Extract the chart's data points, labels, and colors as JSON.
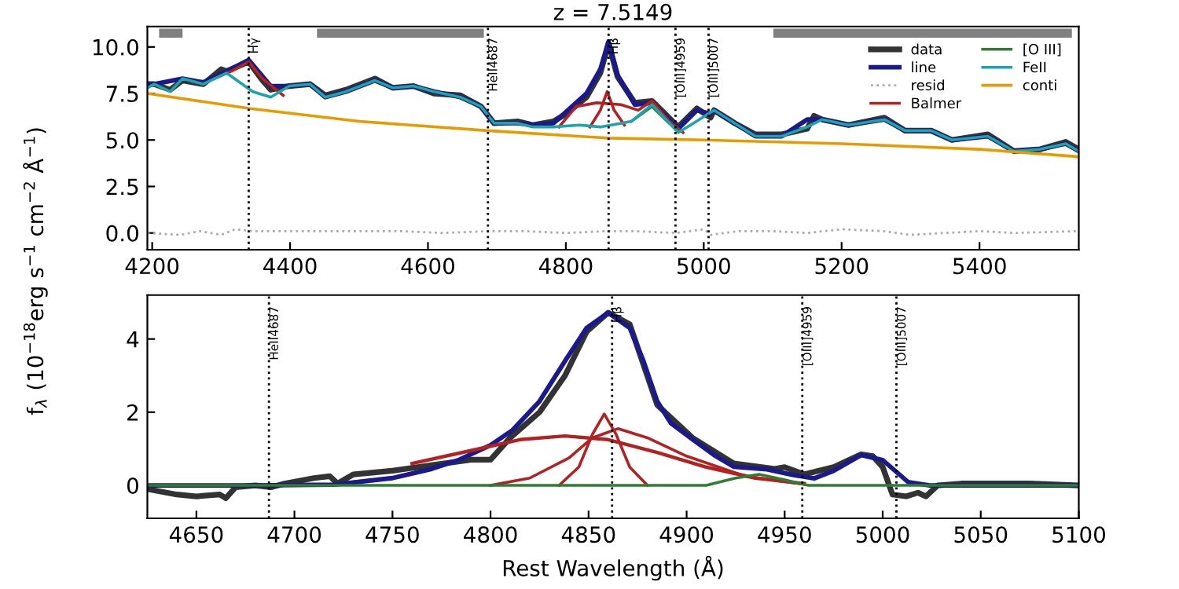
{
  "chart_data": [
    {
      "type": "line",
      "title": "z = 7.5149",
      "ylabel": "f$_{λ}$ (10$^{−18}$erg s$^{−1}$ cm$^{−2}$ Å$^{−1}$)",
      "xlim": [
        4193,
        5544
      ],
      "ylim": [
        -0.9,
        11.1
      ],
      "xticks": [
        4200,
        4400,
        4600,
        4800,
        5000,
        5200,
        5400
      ],
      "yticks": [
        {
          "value": 0,
          "label": "0.0"
        },
        {
          "value": 2.5,
          "label": "2.5"
        },
        {
          "value": 5,
          "label": "5.0"
        },
        {
          "value": 7.5,
          "label": "7.5"
        },
        {
          "value": 10,
          "label": "10.0"
        }
      ],
      "grid": false,
      "legend": "top right",
      "series": [
        {
          "name": "data",
          "color": "#333333",
          "x": [
            4193,
            4203,
            4226,
            4244,
            4274,
            4300,
            4308,
            4340,
            4360,
            4372,
            4399,
            4429,
            4451,
            4481,
            4523,
            4549,
            4579,
            4609,
            4647,
            4677,
            4696,
            4730,
            4752,
            4782,
            4800,
            4830,
            4850,
            4862,
            4875,
            4900,
            4925,
            4963,
            4990,
            5010,
            5015,
            5045,
            5075,
            5113,
            5150,
            5160,
            5172,
            5210,
            5262,
            5292,
            5330,
            5360,
            5412,
            5450,
            5488,
            5525,
            5544
          ],
          "values": [
            8.0,
            8.0,
            7.7,
            8.2,
            8.0,
            8.8,
            8.7,
            9.2,
            8.2,
            7.7,
            7.9,
            8.0,
            7.4,
            7.7,
            8.3,
            7.8,
            7.9,
            7.5,
            7.4,
            6.8,
            5.9,
            6.0,
            5.8,
            6.0,
            6.4,
            7.3,
            8.6,
            10.2,
            8.4,
            7.0,
            7.1,
            5.7,
            6.7,
            6.2,
            6.6,
            5.9,
            5.3,
            5.3,
            5.6,
            6.3,
            6.1,
            5.8,
            6.2,
            5.5,
            5.5,
            5.0,
            5.3,
            4.4,
            4.5,
            4.9,
            4.5
          ]
        },
        {
          "name": "line",
          "color": "#1a1a8c",
          "x": [
            4193,
            4203,
            4244,
            4274,
            4308,
            4340,
            4372,
            4399,
            4429,
            4451,
            4481,
            4523,
            4549,
            4579,
            4609,
            4647,
            4677,
            4696,
            4730,
            4752,
            4782,
            4800,
            4830,
            4850,
            4862,
            4875,
            4900,
            4925,
            4963,
            4990,
            5010,
            5015,
            5045,
            5075,
            5113,
            5150,
            5172,
            5210,
            5262,
            5292,
            5330,
            5360,
            5412,
            5450,
            5488,
            5525,
            5544
          ],
          "values": [
            8.0,
            8.0,
            8.3,
            8.1,
            8.7,
            9.3,
            7.9,
            7.9,
            8.0,
            7.3,
            7.6,
            8.2,
            7.8,
            7.9,
            7.6,
            7.3,
            6.8,
            5.9,
            5.9,
            5.8,
            5.9,
            6.5,
            7.5,
            8.8,
            10.3,
            8.5,
            6.9,
            7.0,
            5.6,
            6.6,
            6.4,
            6.6,
            5.9,
            5.2,
            5.2,
            6.1,
            6.1,
            5.8,
            6.1,
            5.5,
            5.5,
            5.0,
            5.2,
            4.4,
            4.5,
            4.8,
            4.4
          ]
        },
        {
          "name": "resid",
          "color": "#aaaaaa",
          "line_style": "dotted",
          "x": [
            4193,
            4240,
            4270,
            4300,
            4320,
            4345,
            4400,
            4450,
            4500,
            4560,
            4620,
            4690,
            4740,
            4800,
            4860,
            4900,
            4960,
            5000,
            5010,
            5050,
            5100,
            5150,
            5200,
            5260,
            5300,
            5400,
            5450,
            5544
          ],
          "values": [
            0.0,
            -0.1,
            0.1,
            -0.1,
            0.2,
            0.1,
            0.1,
            0.1,
            0.1,
            0.1,
            0.0,
            0.1,
            0.1,
            0.0,
            0.1,
            0.1,
            0.0,
            0.2,
            -0.1,
            0.1,
            0.1,
            0.0,
            0.2,
            0.1,
            -0.1,
            0.1,
            0.0,
            0.1
          ]
        },
        {
          "name": "Balmer",
          "color": "#b22222",
          "x": [
            4290,
            4315,
            4340,
            4360,
            4390
          ],
          "values": [
            8.3,
            8.7,
            9.2,
            8.3,
            7.4
          ]
        },
        {
          "color": "#b22222",
          "x": [
            4790,
            4815,
            4845,
            4880,
            4905,
            4925,
            4950,
            4970
          ],
          "values": [
            5.7,
            6.8,
            7.0,
            6.9,
            6.6,
            7.1,
            6.0,
            5.4
          ]
        },
        {
          "color": "#b22222",
          "x": [
            4835,
            4850,
            4860,
            4870,
            4885
          ],
          "values": [
            5.7,
            6.6,
            7.6,
            6.6,
            5.8
          ]
        },
        {
          "name": "[O III]",
          "color": "#2e7d32",
          "x": [
            4895,
            4925,
            4950,
            4963
          ],
          "values": [
            6.0,
            6.8,
            5.9,
            5.5
          ]
        },
        {
          "name": "FeII",
          "color": "#1fa3a8",
          "x": [
            4193,
            4203,
            4226,
            4244,
            4274,
            4308,
            4346,
            4372,
            4399,
            4429,
            4451,
            4481,
            4523,
            4549,
            4579,
            4609,
            4647,
            4677,
            4696,
            4730,
            4752,
            4782,
            4820,
            4850,
            4880,
            4895,
            4925,
            4963,
            4985,
            5015,
            5045,
            5075,
            5113,
            5150,
            5172,
            5210,
            5262,
            5292,
            5330,
            5360,
            5412,
            5450,
            5488,
            5525,
            5544
          ],
          "values": [
            7.8,
            8.0,
            7.6,
            8.3,
            8.0,
            8.6,
            7.6,
            7.3,
            7.9,
            8.0,
            7.3,
            7.6,
            8.2,
            7.8,
            7.9,
            7.6,
            7.3,
            6.8,
            5.9,
            5.9,
            5.7,
            5.7,
            5.8,
            5.7,
            5.9,
            6.0,
            6.9,
            5.4,
            5.9,
            6.6,
            5.9,
            5.2,
            5.2,
            5.7,
            6.1,
            5.8,
            6.1,
            5.5,
            5.5,
            5.0,
            5.2,
            4.4,
            4.5,
            4.8,
            4.4
          ]
        },
        {
          "name": "conti",
          "color": "#e69b00",
          "x": [
            4193,
            4340,
            4500,
            4687,
            4862,
            5000,
            5200,
            5400,
            5544
          ],
          "values": [
            7.5,
            6.7,
            6.0,
            5.5,
            5.1,
            5.0,
            4.8,
            4.5,
            4.1
          ]
        }
      ],
      "ref_lines": [
        {
          "axis": "x",
          "value": 4340,
          "label": "Hγ"
        },
        {
          "axis": "x",
          "value": 4687,
          "label": "HeII4687"
        },
        {
          "axis": "x",
          "value": 4862,
          "label": "Hβ"
        },
        {
          "axis": "x",
          "value": 4959,
          "label": "[OIII]4959"
        },
        {
          "axis": "x",
          "value": 5007,
          "label": "[OIII]5007"
        }
      ],
      "bands": [
        {
          "axis": "x",
          "from": 4210,
          "to": 4244,
          "color": "#808080"
        },
        {
          "axis": "x",
          "from": 4439,
          "to": 4681,
          "color": "#808080"
        },
        {
          "axis": "x",
          "from": 5101,
          "to": 5534,
          "color": "#808080"
        }
      ]
    },
    {
      "type": "line",
      "xlabel": "Rest Wavelength (Å)",
      "xlim": [
        4625,
        5100
      ],
      "ylim": [
        -0.9,
        5.2
      ],
      "xticks": [
        4650,
        4700,
        4750,
        4800,
        4850,
        4900,
        4950,
        5000,
        5050,
        5100
      ],
      "yticks": [
        0,
        2,
        4
      ],
      "grid": false,
      "series": [
        {
          "color": "#333333",
          "x": [
            4625,
            4640,
            4650,
            4662,
            4665,
            4670,
            4680,
            4688,
            4695,
            4710,
            4718,
            4722,
            4730,
            4750,
            4770,
            4790,
            4800,
            4810,
            4825,
            4838,
            4849,
            4860,
            4871,
            4878,
            4885,
            4903,
            4924,
            4945,
            4950,
            4960,
            4975,
            4989,
            4995,
            5000,
            5005,
            5012,
            5018,
            5022,
            5028,
            5040,
            5075,
            5100
          ],
          "values": [
            -0.1,
            -0.25,
            -0.3,
            -0.25,
            -0.35,
            -0.05,
            0.0,
            -0.05,
            0.05,
            0.2,
            0.25,
            0.05,
            0.3,
            0.4,
            0.55,
            0.7,
            0.7,
            1.3,
            2.0,
            3.0,
            4.2,
            4.72,
            4.4,
            3.3,
            2.2,
            1.3,
            0.6,
            0.45,
            0.5,
            0.3,
            0.5,
            0.85,
            0.8,
            0.5,
            -0.25,
            -0.3,
            -0.2,
            -0.3,
            0.0,
            0.05,
            0.05,
            0.0
          ]
        },
        {
          "color": "#1a1a8c",
          "x": [
            4625,
            4680,
            4720,
            4750,
            4770,
            4784,
            4800,
            4811,
            4825,
            4838,
            4849,
            4860,
            4871,
            4878,
            4885,
            4892,
            4903,
            4914,
            4924,
            4941,
            4954,
            4965,
            4975,
            4989,
            5000,
            5013,
            5024,
            5100
          ],
          "values": [
            0.0,
            0.0,
            0.02,
            0.2,
            0.45,
            0.7,
            1.1,
            1.5,
            2.3,
            3.4,
            4.3,
            4.72,
            4.3,
            3.4,
            2.3,
            1.7,
            1.26,
            0.83,
            0.51,
            0.44,
            0.29,
            0.19,
            0.4,
            0.83,
            0.69,
            0.09,
            0.0,
            0.0
          ]
        },
        {
          "color": "#b22222",
          "x": [
            4760,
            4790,
            4815,
            4838,
            4860,
            4885,
            4910,
            4935,
            4960
          ],
          "values": [
            0.6,
            0.95,
            1.25,
            1.35,
            1.25,
            0.9,
            0.5,
            0.2,
            0.05
          ]
        },
        {
          "color": "#b22222",
          "x": [
            4800,
            4820,
            4840,
            4852,
            4865,
            4880,
            4900,
            4930,
            4960
          ],
          "values": [
            0.0,
            0.2,
            0.75,
            1.3,
            1.55,
            1.3,
            0.8,
            0.25,
            0.03
          ]
        },
        {
          "color": "#b22222",
          "x": [
            4835,
            4845,
            4852,
            4858,
            4864,
            4871,
            4880
          ],
          "values": [
            0.0,
            0.5,
            1.4,
            1.95,
            1.4,
            0.5,
            0.0
          ]
        },
        {
          "color": "#2e7d32",
          "x": [
            4625,
            4910,
            4925,
            4937,
            4950,
            4962,
            5100
          ],
          "values": [
            0.0,
            0.0,
            0.2,
            0.3,
            0.15,
            0.0,
            0.0
          ]
        }
      ],
      "ref_lines": [
        {
          "axis": "x",
          "value": 4687,
          "label": "HeII4687"
        },
        {
          "axis": "x",
          "value": 4862,
          "label": "Hβ"
        },
        {
          "axis": "x",
          "value": 4959,
          "label": "[OIII]4959"
        },
        {
          "axis": "x",
          "value": 5007,
          "label": "[OIII]5007"
        }
      ]
    }
  ]
}
